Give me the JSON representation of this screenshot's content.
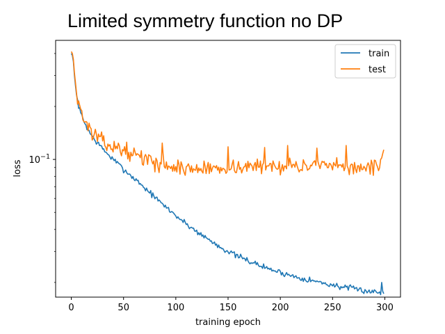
{
  "chart_data": {
    "type": "line",
    "title": "Limited symmetry function no DP",
    "xlabel": "training epoch",
    "ylabel": "loss",
    "yscale": "log",
    "xlim": [
      -15,
      315
    ],
    "ylim": [
      0.0165,
      0.475
    ],
    "x_ticks": [
      0,
      50,
      100,
      150,
      200,
      250,
      300
    ],
    "x_tick_labels": [
      "0",
      "50",
      "100",
      "150",
      "200",
      "250",
      "300"
    ],
    "y_ticks": [
      0.1
    ],
    "y_tick_labels": [
      {
        "base": "10",
        "exp": "−1"
      }
    ],
    "grid": false,
    "legend_position": "top-right",
    "x": {
      "start": 0,
      "end": 299,
      "step": 1
    },
    "series": [
      {
        "name": "train",
        "color": "#1f77b4",
        "anchors": [
          [
            0,
            0.4
          ],
          [
            1,
            0.39
          ],
          [
            2,
            0.36
          ],
          [
            3,
            0.3
          ],
          [
            5,
            0.23
          ],
          [
            8,
            0.19
          ],
          [
            12,
            0.165
          ],
          [
            16,
            0.148
          ],
          [
            20,
            0.135
          ],
          [
            25,
            0.124
          ],
          [
            30,
            0.115
          ],
          [
            35,
            0.107
          ],
          [
            40,
            0.1
          ],
          [
            45,
            0.094
          ],
          [
            50,
            0.088
          ],
          [
            55,
            0.083
          ],
          [
            60,
            0.078
          ],
          [
            65,
            0.074
          ],
          [
            70,
            0.069
          ],
          [
            75,
            0.065
          ],
          [
            80,
            0.061
          ],
          [
            85,
            0.057
          ],
          [
            90,
            0.054
          ],
          [
            95,
            0.051
          ],
          [
            100,
            0.048
          ],
          [
            110,
            0.043
          ],
          [
            120,
            0.039
          ],
          [
            130,
            0.0355
          ],
          [
            140,
            0.0325
          ],
          [
            150,
            0.03
          ],
          [
            160,
            0.028
          ],
          [
            170,
            0.0265
          ],
          [
            180,
            0.025
          ],
          [
            190,
            0.0238
          ],
          [
            200,
            0.0228
          ],
          [
            210,
            0.0219
          ],
          [
            220,
            0.0212
          ],
          [
            230,
            0.0205
          ],
          [
            240,
            0.0199
          ],
          [
            250,
            0.0193
          ],
          [
            260,
            0.0188
          ],
          [
            270,
            0.0184
          ],
          [
            280,
            0.018
          ],
          [
            290,
            0.0177
          ],
          [
            295,
            0.0175
          ],
          [
            299,
            0.0174
          ]
        ],
        "noise": 0.035,
        "seed": 7,
        "spikes": [
          [
            297,
            0.02
          ],
          [
            298,
            0.0178
          ]
        ]
      },
      {
        "name": "test",
        "color": "#ff7f0e",
        "anchors": [
          [
            0,
            0.41
          ],
          [
            1,
            0.4
          ],
          [
            2,
            0.37
          ],
          [
            3,
            0.31
          ],
          [
            5,
            0.24
          ],
          [
            8,
            0.2
          ],
          [
            12,
            0.17
          ],
          [
            16,
            0.152
          ],
          [
            20,
            0.142
          ],
          [
            25,
            0.135
          ],
          [
            30,
            0.125
          ],
          [
            40,
            0.118
          ],
          [
            50,
            0.113
          ],
          [
            60,
            0.107
          ],
          [
            70,
            0.101
          ],
          [
            80,
            0.096
          ],
          [
            90,
            0.093
          ],
          [
            100,
            0.09
          ],
          [
            120,
            0.088
          ],
          [
            150,
            0.09
          ],
          [
            200,
            0.092
          ],
          [
            250,
            0.091
          ],
          [
            290,
            0.09
          ],
          [
            295,
            0.092
          ],
          [
            299,
            0.118
          ]
        ],
        "noise": 0.09,
        "seed": 13,
        "spikes": [
          [
            87,
            0.124
          ],
          [
            150,
            0.118
          ],
          [
            185,
            0.117
          ],
          [
            207,
            0.12
          ],
          [
            235,
            0.116
          ],
          [
            263,
            0.12
          ],
          [
            296,
            0.1
          ],
          [
            297,
            0.102
          ],
          [
            298,
            0.108
          ]
        ]
      }
    ]
  }
}
